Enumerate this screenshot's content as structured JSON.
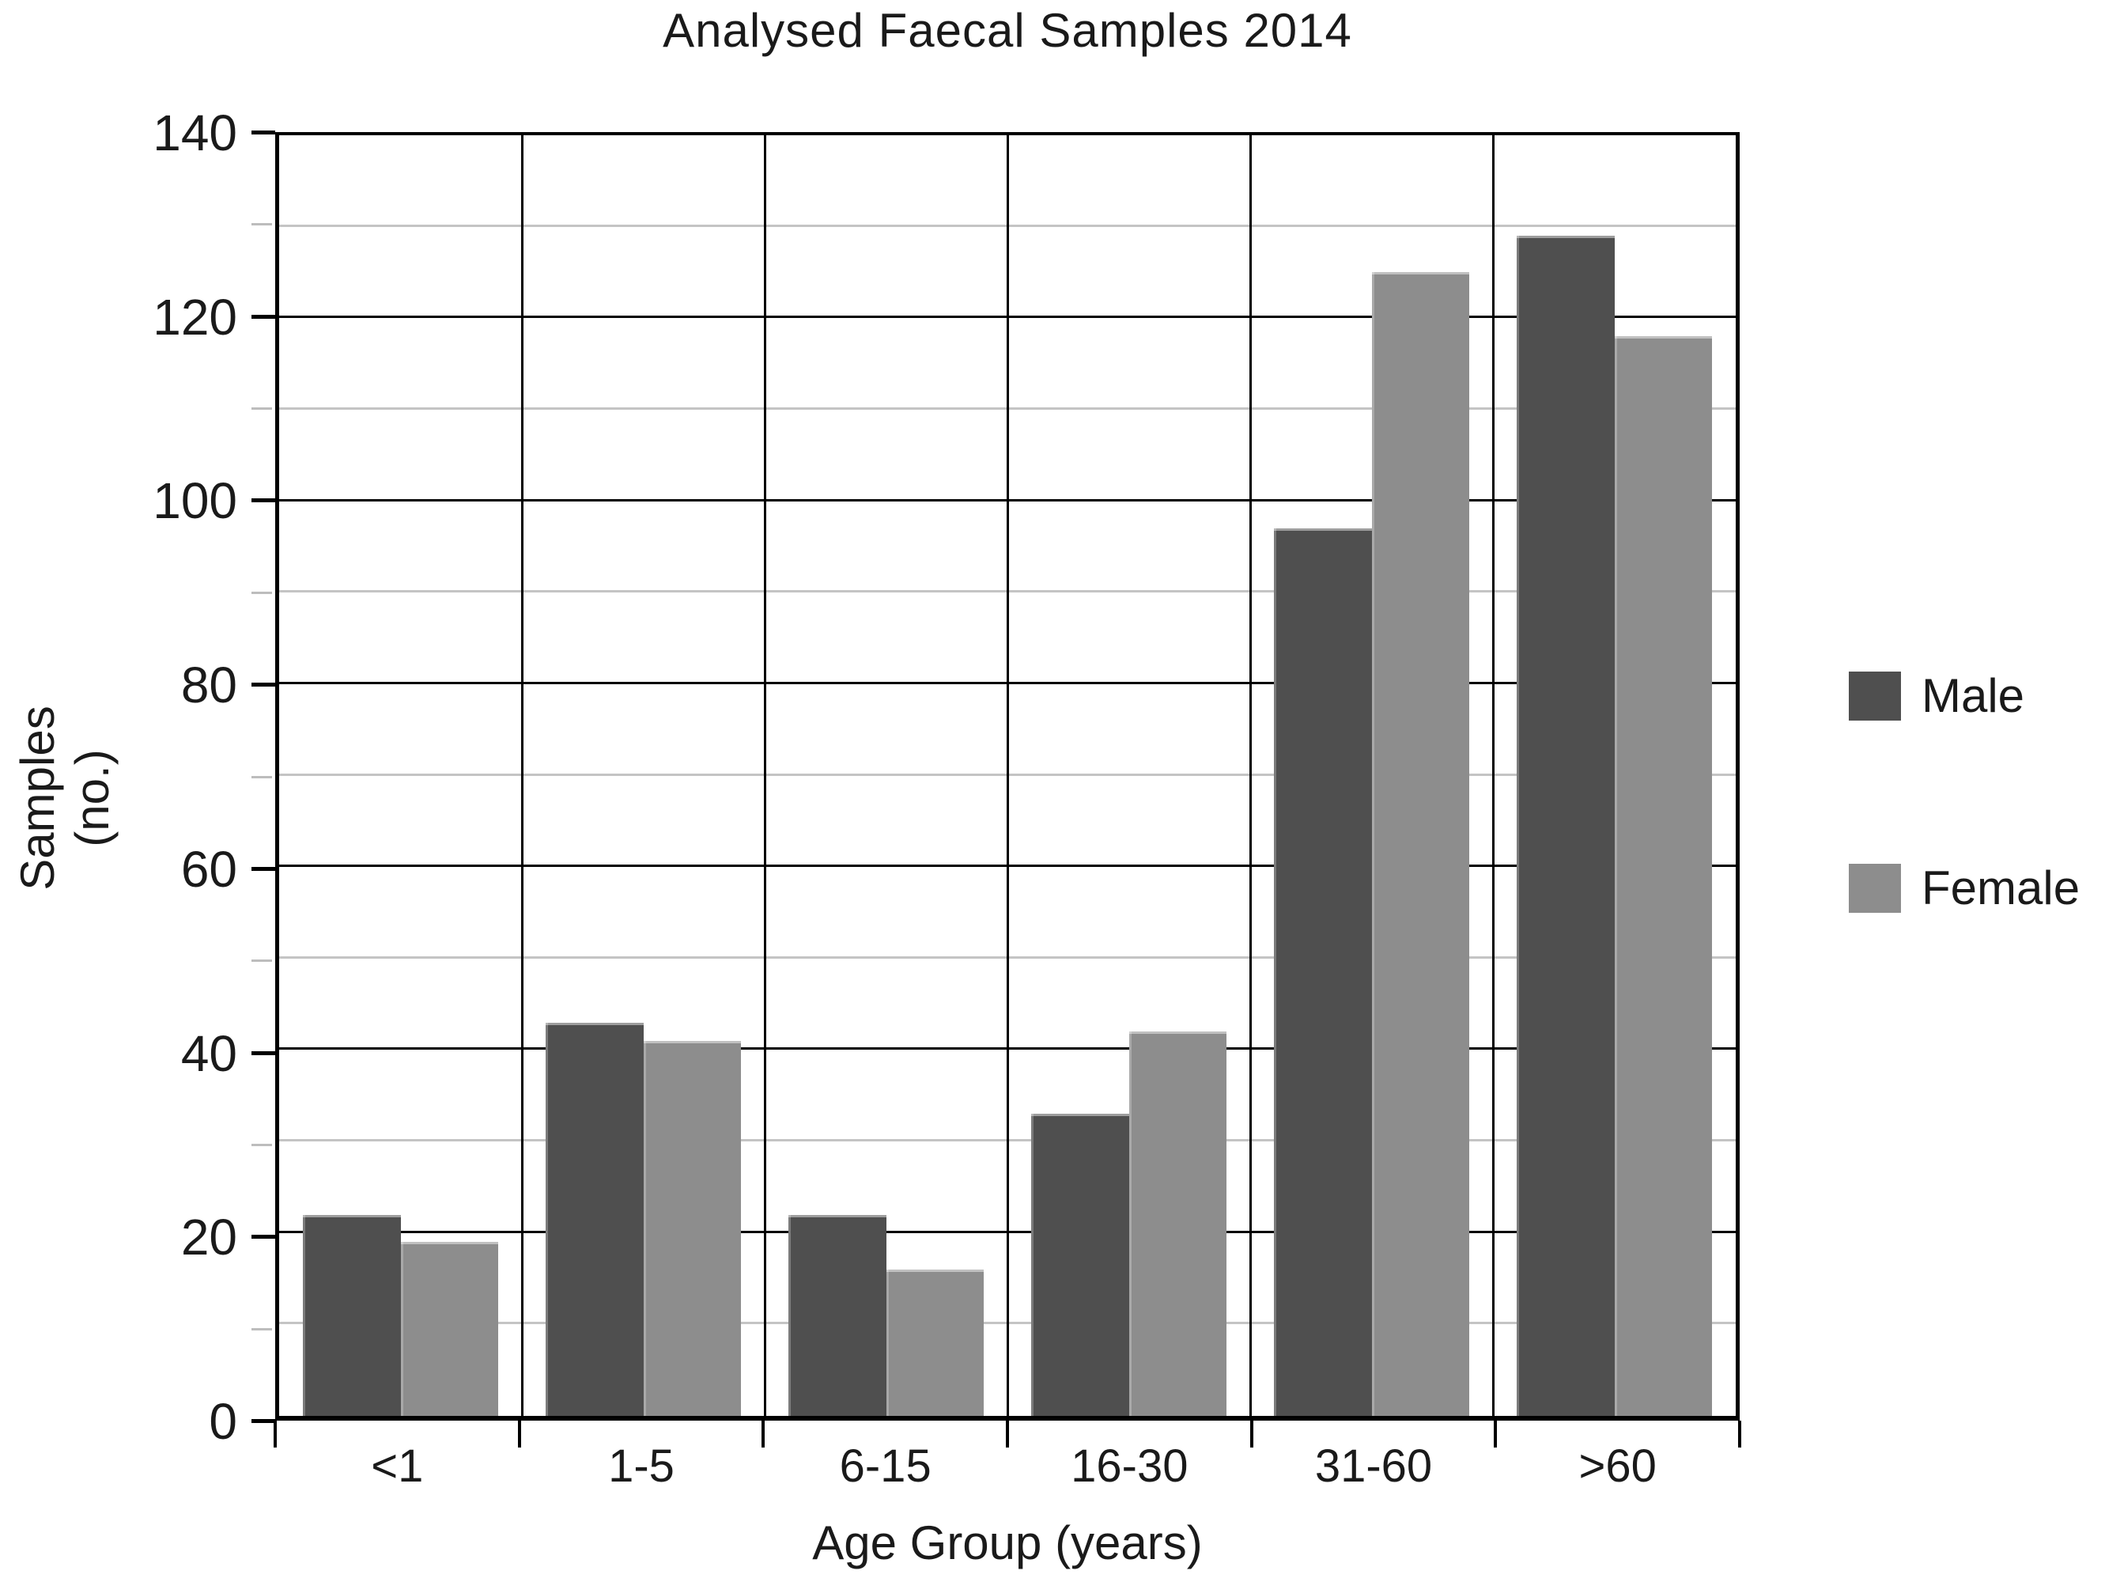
{
  "title": "Analysed Faecal Samples 2014",
  "y_axis": {
    "title_line1": "Samples",
    "title_line2": "(no.)",
    "min": 0,
    "max": 140,
    "major_step": 20,
    "minor_step": 10,
    "tick_labels": [
      "0",
      "20",
      "40",
      "60",
      "80",
      "100",
      "120",
      "140"
    ]
  },
  "x_axis": {
    "title": "Age Group (years)",
    "tick_labels": [
      "<1",
      "1-5",
      "6-15",
      "16-30",
      "31-60",
      ">60"
    ]
  },
  "legend": {
    "items": [
      {
        "label": "Male",
        "color": "#4f4f4f"
      },
      {
        "label": "Female",
        "color": "#8d8d8d"
      }
    ]
  },
  "colors": {
    "male_bar": "#4f4f4f",
    "female_bar": "#8d8d8d",
    "major_grid": "#000000",
    "minor_grid": "#c4c4c4",
    "axis": "#000000"
  },
  "chart_data": {
    "type": "bar",
    "title": "Analysed Faecal Samples 2014",
    "categories": [
      "<1",
      "1-5",
      "6-15",
      "16-30",
      "31-60",
      ">60"
    ],
    "series": [
      {
        "name": "Male",
        "color": "#4f4f4f",
        "values": [
          22,
          43,
          22,
          33,
          97,
          129
        ]
      },
      {
        "name": "Female",
        "color": "#8d8d8d",
        "values": [
          19,
          41,
          16,
          42,
          125,
          118
        ]
      }
    ],
    "xlabel": "Age Group (years)",
    "ylabel": "Samples (no.)",
    "ylim": [
      0,
      140
    ],
    "grid": {
      "major_step": 20,
      "minor_step": 10,
      "major_on": true,
      "minor_on": true
    },
    "legend_position": "right"
  }
}
